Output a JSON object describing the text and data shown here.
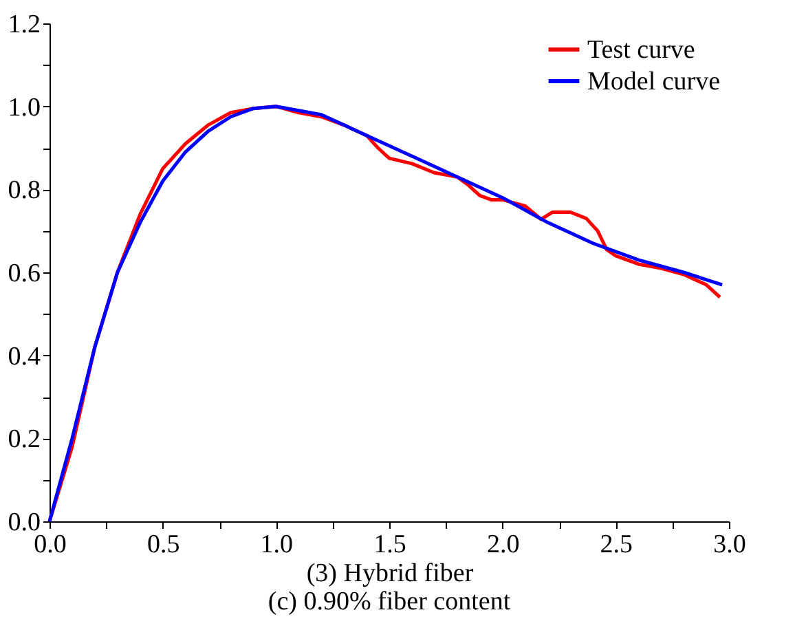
{
  "chart_data": {
    "type": "line",
    "xlabel": "(3)    Hybrid fiber",
    "annotations": [
      "(c)  0.90% fiber content"
    ],
    "xlim": [
      0,
      3.0
    ],
    "ylim": [
      0,
      1.2
    ],
    "xticks": [
      {
        "value": 0,
        "label": "0.0"
      },
      {
        "value": 0.25,
        "label": null
      },
      {
        "value": 0.5,
        "label": "0.5"
      },
      {
        "value": 0.75,
        "label": null
      },
      {
        "value": 1.0,
        "label": "1.0"
      },
      {
        "value": 1.25,
        "label": null
      },
      {
        "value": 1.5,
        "label": "1.5"
      },
      {
        "value": 1.75,
        "label": null
      },
      {
        "value": 2.0,
        "label": "2.0"
      },
      {
        "value": 2.25,
        "label": null
      },
      {
        "value": 2.5,
        "label": "2.5"
      },
      {
        "value": 2.75,
        "label": null
      },
      {
        "value": 3.0,
        "label": "3.0"
      }
    ],
    "yticks": [
      {
        "value": 0,
        "label": "0.0"
      },
      {
        "value": 0.1,
        "label": null
      },
      {
        "value": 0.2,
        "label": "0.2"
      },
      {
        "value": 0.3,
        "label": null
      },
      {
        "value": 0.4,
        "label": "0.4"
      },
      {
        "value": 0.5,
        "label": null
      },
      {
        "value": 0.6,
        "label": "0.6"
      },
      {
        "value": 0.7,
        "label": null
      },
      {
        "value": 0.8,
        "label": "0.8"
      },
      {
        "value": 0.9,
        "label": null
      },
      {
        "value": 1.0,
        "label": "1.0"
      },
      {
        "value": 1.1,
        "label": null
      },
      {
        "value": 1.2,
        "label": "1.2"
      }
    ],
    "grid": false,
    "legend": "top right",
    "marker": "none",
    "line_style": "solid",
    "series": [
      {
        "name": "Test curve",
        "color": "#ff0000",
        "x": [
          0,
          0.1,
          0.2,
          0.3,
          0.4,
          0.5,
          0.6,
          0.7,
          0.8,
          0.9,
          1.0,
          1.1,
          1.2,
          1.3,
          1.4,
          1.45,
          1.5,
          1.6,
          1.7,
          1.8,
          1.85,
          1.9,
          1.95,
          2.0,
          2.1,
          2.17,
          2.22,
          2.3,
          2.37,
          2.42,
          2.46,
          2.5,
          2.6,
          2.7,
          2.8,
          2.9,
          2.96
        ],
        "values": [
          0,
          0.18,
          0.42,
          0.6,
          0.74,
          0.85,
          0.91,
          0.955,
          0.985,
          0.995,
          1.0,
          0.985,
          0.975,
          0.955,
          0.93,
          0.9,
          0.875,
          0.862,
          0.84,
          0.83,
          0.81,
          0.785,
          0.775,
          0.775,
          0.76,
          0.728,
          0.745,
          0.745,
          0.73,
          0.7,
          0.655,
          0.64,
          0.62,
          0.61,
          0.595,
          0.57,
          0.54
        ]
      },
      {
        "name": "Model curve",
        "color": "#0000ff",
        "x": [
          0,
          0.1,
          0.2,
          0.3,
          0.4,
          0.5,
          0.6,
          0.7,
          0.8,
          0.9,
          1.0,
          1.2,
          1.4,
          1.6,
          1.8,
          2.0,
          2.2,
          2.4,
          2.6,
          2.8,
          2.97
        ],
        "values": [
          0,
          0.2,
          0.42,
          0.6,
          0.72,
          0.82,
          0.89,
          0.94,
          0.975,
          0.995,
          1.0,
          0.98,
          0.93,
          0.88,
          0.83,
          0.78,
          0.72,
          0.67,
          0.63,
          0.6,
          0.57
        ]
      }
    ]
  }
}
